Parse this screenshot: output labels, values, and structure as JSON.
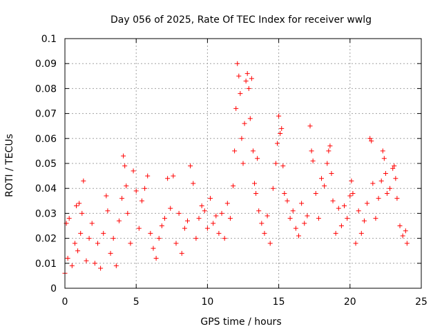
{
  "chart_data": {
    "type": "scatter",
    "title": "Day 056 of 2025, Rate Of TEC Index for receiver wwlg",
    "xlabel": "GPS time / hours",
    "ylabel": "ROTI / TECUs",
    "xlim": [
      0,
      25
    ],
    "ylim": [
      0,
      0.1
    ],
    "x_ticks": [
      "0",
      "5",
      "10",
      "15",
      "20",
      "25"
    ],
    "y_ticks": [
      "0",
      "0.01",
      "0.02",
      "0.03",
      "0.04",
      "0.05",
      "0.06",
      "0.07",
      "0.08",
      "0.09",
      "0.1"
    ],
    "grid": true,
    "marker": "+",
    "color": "#ff0000",
    "series": [
      {
        "name": "",
        "points": [
          [
            0.0,
            0.006
          ],
          [
            0.1,
            0.026
          ],
          [
            0.2,
            0.012
          ],
          [
            0.3,
            0.028
          ],
          [
            0.5,
            0.009
          ],
          [
            0.7,
            0.018
          ],
          [
            0.8,
            0.033
          ],
          [
            0.9,
            0.015
          ],
          [
            1.0,
            0.034
          ],
          [
            1.1,
            0.022
          ],
          [
            1.2,
            0.03
          ],
          [
            1.3,
            0.043
          ],
          [
            1.5,
            0.011
          ],
          [
            1.7,
            0.02
          ],
          [
            1.9,
            0.026
          ],
          [
            2.1,
            0.01
          ],
          [
            2.3,
            0.018
          ],
          [
            2.5,
            0.008
          ],
          [
            2.7,
            0.022
          ],
          [
            2.9,
            0.037
          ],
          [
            3.0,
            0.031
          ],
          [
            3.2,
            0.014
          ],
          [
            3.4,
            0.02
          ],
          [
            3.6,
            0.009
          ],
          [
            3.8,
            0.027
          ],
          [
            4.0,
            0.036
          ],
          [
            4.1,
            0.053
          ],
          [
            4.2,
            0.049
          ],
          [
            4.3,
            0.041
          ],
          [
            4.4,
            0.03
          ],
          [
            4.6,
            0.018
          ],
          [
            4.8,
            0.047
          ],
          [
            5.0,
            0.039
          ],
          [
            5.2,
            0.024
          ],
          [
            5.4,
            0.035
          ],
          [
            5.6,
            0.04
          ],
          [
            5.8,
            0.045
          ],
          [
            6.0,
            0.022
          ],
          [
            6.2,
            0.016
          ],
          [
            6.4,
            0.012
          ],
          [
            6.6,
            0.02
          ],
          [
            6.8,
            0.025
          ],
          [
            7.0,
            0.028
          ],
          [
            7.2,
            0.044
          ],
          [
            7.4,
            0.032
          ],
          [
            7.6,
            0.045
          ],
          [
            7.8,
            0.018
          ],
          [
            8.0,
            0.03
          ],
          [
            8.2,
            0.014
          ],
          [
            8.4,
            0.024
          ],
          [
            8.6,
            0.027
          ],
          [
            8.8,
            0.049
          ],
          [
            9.0,
            0.042
          ],
          [
            9.2,
            0.02
          ],
          [
            9.4,
            0.028
          ],
          [
            9.6,
            0.033
          ],
          [
            9.8,
            0.031
          ],
          [
            10.0,
            0.024
          ],
          [
            10.2,
            0.036
          ],
          [
            10.4,
            0.026
          ],
          [
            10.6,
            0.029
          ],
          [
            10.8,
            0.022
          ],
          [
            11.0,
            0.03
          ],
          [
            11.2,
            0.02
          ],
          [
            11.4,
            0.034
          ],
          [
            11.6,
            0.028
          ],
          [
            11.8,
            0.041
          ],
          [
            11.9,
            0.055
          ],
          [
            12.0,
            0.072
          ],
          [
            12.1,
            0.09
          ],
          [
            12.2,
            0.085
          ],
          [
            12.3,
            0.078
          ],
          [
            12.4,
            0.06
          ],
          [
            12.5,
            0.05
          ],
          [
            12.6,
            0.066
          ],
          [
            12.7,
            0.083
          ],
          [
            12.8,
            0.086
          ],
          [
            12.9,
            0.08
          ],
          [
            13.0,
            0.068
          ],
          [
            13.1,
            0.084
          ],
          [
            13.2,
            0.055
          ],
          [
            13.3,
            0.042
          ],
          [
            13.4,
            0.038
          ],
          [
            13.5,
            0.052
          ],
          [
            13.6,
            0.031
          ],
          [
            13.8,
            0.026
          ],
          [
            14.0,
            0.022
          ],
          [
            14.2,
            0.029
          ],
          [
            14.4,
            0.018
          ],
          [
            14.6,
            0.04
          ],
          [
            14.8,
            0.05
          ],
          [
            14.9,
            0.058
          ],
          [
            15.0,
            0.069
          ],
          [
            15.1,
            0.062
          ],
          [
            15.2,
            0.064
          ],
          [
            15.3,
            0.049
          ],
          [
            15.4,
            0.038
          ],
          [
            15.6,
            0.035
          ],
          [
            15.8,
            0.028
          ],
          [
            16.0,
            0.031
          ],
          [
            16.2,
            0.024
          ],
          [
            16.4,
            0.021
          ],
          [
            16.6,
            0.034
          ],
          [
            16.8,
            0.026
          ],
          [
            17.0,
            0.029
          ],
          [
            17.2,
            0.065
          ],
          [
            17.3,
            0.055
          ],
          [
            17.4,
            0.051
          ],
          [
            17.6,
            0.038
          ],
          [
            17.8,
            0.028
          ],
          [
            18.0,
            0.044
          ],
          [
            18.2,
            0.041
          ],
          [
            18.4,
            0.05
          ],
          [
            18.5,
            0.055
          ],
          [
            18.6,
            0.057
          ],
          [
            18.7,
            0.046
          ],
          [
            18.8,
            0.035
          ],
          [
            19.0,
            0.022
          ],
          [
            19.2,
            0.032
          ],
          [
            19.4,
            0.025
          ],
          [
            19.6,
            0.033
          ],
          [
            19.8,
            0.028
          ],
          [
            20.0,
            0.037
          ],
          [
            20.1,
            0.043
          ],
          [
            20.2,
            0.038
          ],
          [
            20.4,
            0.018
          ],
          [
            20.6,
            0.031
          ],
          [
            20.8,
            0.022
          ],
          [
            21.0,
            0.027
          ],
          [
            21.2,
            0.034
          ],
          [
            21.4,
            0.06
          ],
          [
            21.5,
            0.059
          ],
          [
            21.6,
            0.042
          ],
          [
            21.8,
            0.028
          ],
          [
            22.0,
            0.036
          ],
          [
            22.2,
            0.043
          ],
          [
            22.3,
            0.055
          ],
          [
            22.4,
            0.052
          ],
          [
            22.5,
            0.046
          ],
          [
            22.6,
            0.038
          ],
          [
            22.8,
            0.04
          ],
          [
            23.0,
            0.048
          ],
          [
            23.1,
            0.049
          ],
          [
            23.2,
            0.044
          ],
          [
            23.3,
            0.036
          ],
          [
            23.5,
            0.025
          ],
          [
            23.7,
            0.021
          ],
          [
            23.9,
            0.023
          ],
          [
            24.0,
            0.018
          ]
        ]
      }
    ]
  }
}
